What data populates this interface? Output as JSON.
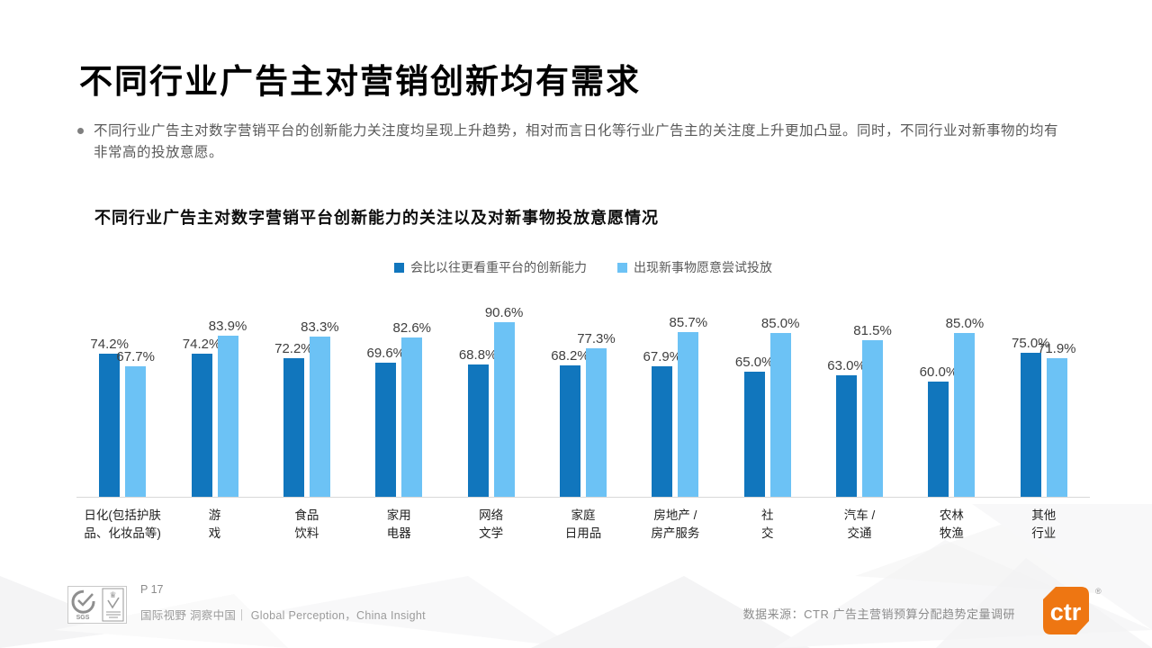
{
  "slide": {
    "title": "不同行业广告主对营销创新均有需求",
    "bullet_text": "不同行业广告主对数字营销平台的创新能力关注度均呈现上升趋势，相对而言日化等行业广告主的关注度上升更加凸显。同时，不同行业对新事物的均有非常高的投放意愿。"
  },
  "chart_data": {
    "type": "bar",
    "title": "不同行业广告主对数字营销平台创新能力的关注以及对新事物投放意愿情况",
    "categories": [
      "日化(包括护肤\n品、化妆品等)",
      "游\n戏",
      "食品\n饮料",
      "家用\n电器",
      "网络\n文学",
      "家庭\n日用品",
      "房地产 /\n房产服务",
      "社\n交",
      "汽车 /\n交通",
      "农林\n牧渔",
      "其他\n行业"
    ],
    "series": [
      {
        "name": "会比以往更看重平台的创新能力",
        "color": "#1176bd",
        "values": [
          74.2,
          74.2,
          72.2,
          69.6,
          68.8,
          68.2,
          67.9,
          65.0,
          63.0,
          60.0,
          75.0
        ]
      },
      {
        "name": "出现新事物愿意尝试投放",
        "color": "#6cc2f5",
        "values": [
          67.7,
          83.9,
          83.3,
          82.6,
          90.6,
          77.3,
          85.7,
          85.0,
          81.5,
          85.0,
          71.9
        ]
      }
    ],
    "ylim": [
      0,
      100
    ],
    "value_suffix": "%",
    "value_decimals": 1,
    "grid": false,
    "legend_position": "top",
    "axis_line_color": "#d9d9d9"
  },
  "footer": {
    "page_number": "P 17",
    "tagline": "国际视野 洞察中国｜ Global Perception，China Insight",
    "data_source": "数据来源：CTR 广告主营销预算分配趋势定量调研",
    "logo_text": "ctr",
    "logo_registered": "®",
    "logo_color": "#ee7612",
    "cert_icons": [
      "sgs-certification-icon",
      "quality-certification-icon"
    ]
  }
}
